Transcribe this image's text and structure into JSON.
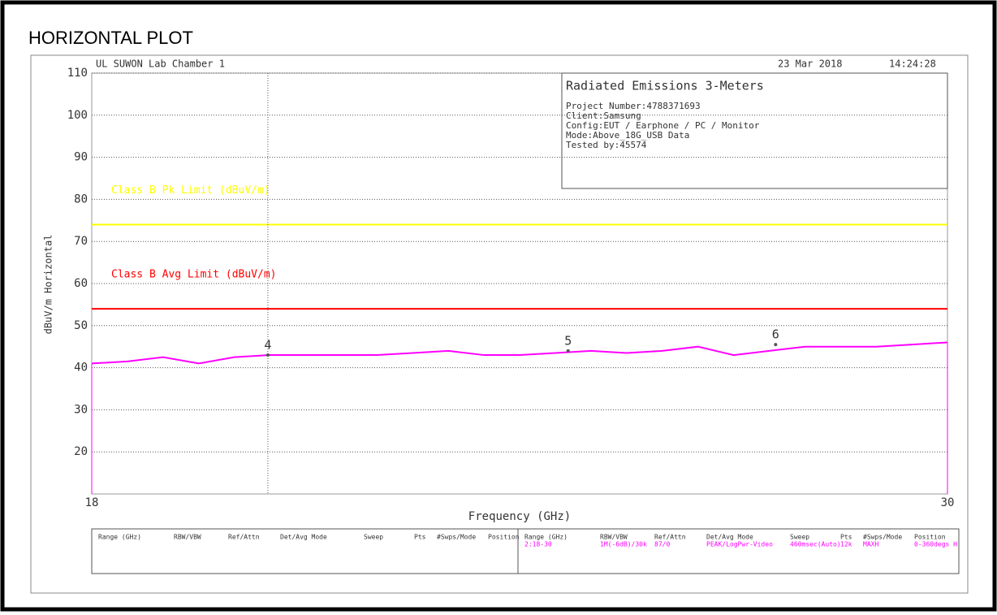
{
  "page_title": "HORIZONTAL PLOT",
  "header": {
    "lab": "UL SUWON Lab Chamber 1",
    "date": "23 Mar 2018",
    "time": "14:24:28"
  },
  "info": {
    "title": "Radiated Emissions 3-Meters",
    "lines": [
      "Project Number:4788371693",
      "Client:Samsung",
      "Config:EUT / Earphone / PC / Monitor",
      "Mode:Above_18G_USB Data",
      "Tested by:45574"
    ]
  },
  "chart_data": {
    "type": "line",
    "y_label": "dBuV/m Horizontal",
    "x_label": "Frequency (GHz)",
    "xlim": [
      18,
      30
    ],
    "xticks": [
      18,
      30
    ],
    "ylim": [
      10,
      110
    ],
    "yticks": [
      20,
      30,
      40,
      50,
      60,
      70,
      80,
      90,
      100,
      110
    ],
    "grid": true,
    "limit_lines": [
      {
        "name": "Class B Pk Limit (dBuV/m)",
        "color": "#ffff00",
        "value": 74
      },
      {
        "name": "Class B Avg Limit (dBuV/m)",
        "color": "#ff0000",
        "value": 54
      }
    ],
    "series": [
      {
        "color": "#ff00ff",
        "x": [
          18,
          18.5,
          19,
          19.5,
          20,
          20.5,
          21,
          21.5,
          22,
          22.5,
          23,
          23.5,
          24,
          24.5,
          25,
          25.5,
          26,
          26.5,
          27,
          27.5,
          28,
          28.5,
          29,
          29.5,
          30
        ],
        "values": [
          41,
          41.5,
          42.5,
          41,
          42.5,
          43,
          43,
          43,
          43,
          43.5,
          44,
          43,
          43,
          43.5,
          44,
          43.5,
          44,
          45,
          43,
          44,
          45,
          45,
          45,
          45.5,
          46
        ]
      }
    ],
    "markers": [
      {
        "label": "4",
        "x": 20.47,
        "value": 43
      },
      {
        "label": "5",
        "x": 24.68,
        "value": 44
      },
      {
        "label": "6",
        "x": 27.59,
        "value": 45.5
      }
    ]
  },
  "table": {
    "headers": [
      "Range (GHz)",
      "RBW/VBW",
      "Ref/Attn",
      "Det/Avg Mode",
      "Sweep",
      "Pts",
      "#Swps/Mode",
      "Position"
    ],
    "values": [
      "2:18-30",
      "1M(-6dB)/30k",
      "87/0",
      "PEAK/LogPwr-Video",
      "460msec(Auto)",
      "12k",
      "MAXH",
      "0-360degs H"
    ]
  }
}
